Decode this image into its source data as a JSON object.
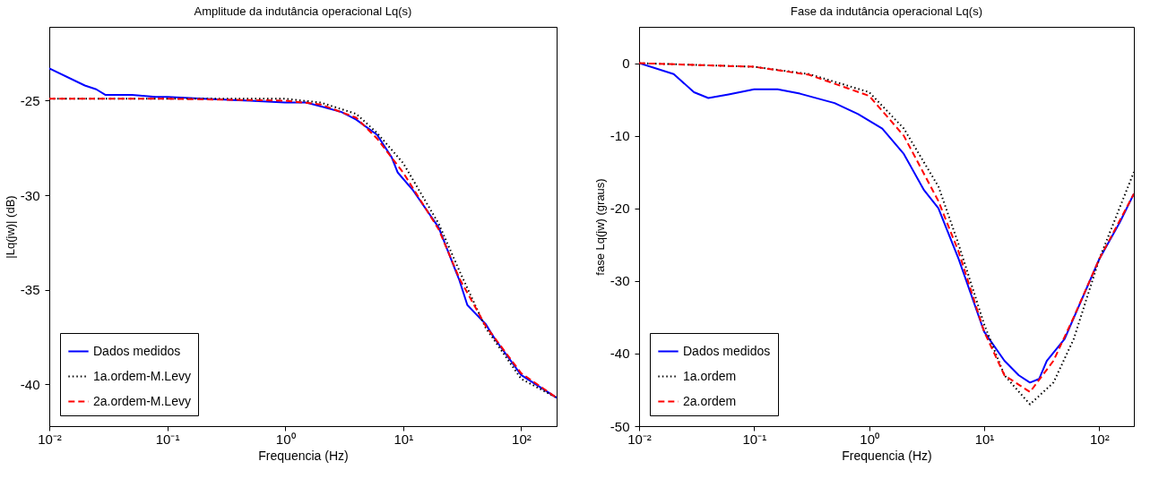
{
  "chart_data": [
    {
      "type": "line",
      "title": "Amplitude da indutância operacional Lq(s)",
      "xlabel": "Frequencia (Hz)",
      "ylabel": "|Lq(jw)| (dB)",
      "log": "x",
      "grid": false,
      "legend": "bottom left",
      "xlim": [
        0.01,
        200
      ],
      "ylim": [
        -42.2,
        -21.1
      ],
      "xticks": [
        {
          "value": 0.01,
          "label": "10⁻²"
        },
        {
          "value": 0.1,
          "label": "10⁻¹"
        },
        {
          "value": 1,
          "label": "10⁰"
        },
        {
          "value": 10,
          "label": "10¹"
        },
        {
          "value": 100,
          "label": "10²"
        }
      ],
      "yticks": [
        -40,
        -35,
        -30,
        -25
      ],
      "series": [
        {
          "name": "Dados medidos",
          "color": "#0000ff",
          "line_style": "solid",
          "x": [
            0.01,
            0.02,
            0.025,
            0.03,
            0.05,
            0.08,
            0.1,
            0.2,
            0.5,
            1,
            1.5,
            2,
            3,
            4,
            6,
            8,
            9,
            12,
            20,
            30,
            35,
            50,
            60,
            100,
            200
          ],
          "values": [
            -23.3,
            -24.2,
            -24.4,
            -24.7,
            -24.7,
            -24.8,
            -24.8,
            -24.9,
            -25.0,
            -25.1,
            -25.1,
            -25.3,
            -25.6,
            -26.0,
            -26.8,
            -28.0,
            -28.8,
            -29.7,
            -31.7,
            -34.5,
            -35.8,
            -36.8,
            -37.6,
            -39.5,
            -40.7
          ]
        },
        {
          "name": "1a.ordem-M.Levy",
          "color": "#000000",
          "line_style": "dotted",
          "x": [
            0.01,
            0.1,
            1,
            2,
            4,
            6,
            10,
            20,
            30,
            50,
            100,
            200
          ],
          "values": [
            -24.9,
            -24.9,
            -24.9,
            -25.1,
            -25.7,
            -26.7,
            -28.3,
            -31.5,
            -34.0,
            -37.0,
            -39.7,
            -40.7
          ]
        },
        {
          "name": "2a.ordem-M.Levy",
          "color": "#ff0000",
          "line_style": "dashed",
          "x": [
            0.01,
            0.1,
            1,
            2,
            4,
            6,
            10,
            20,
            30,
            50,
            100,
            200
          ],
          "values": [
            -24.9,
            -24.9,
            -25.0,
            -25.2,
            -25.9,
            -27.0,
            -28.8,
            -31.8,
            -34.4,
            -36.9,
            -39.4,
            -40.7
          ]
        }
      ]
    },
    {
      "type": "line",
      "title": "Fase da indutância operacional Lq(s)",
      "xlabel": "Frequencia (Hz)",
      "ylabel": "fase Lq(jw) (graus)",
      "log": "x",
      "grid": false,
      "legend": "bottom left",
      "xlim": [
        0.01,
        200
      ],
      "ylim": [
        -50,
        5
      ],
      "xticks": [
        {
          "value": 0.01,
          "label": "10⁻²"
        },
        {
          "value": 0.1,
          "label": "10⁻¹"
        },
        {
          "value": 1,
          "label": "10⁰"
        },
        {
          "value": 10,
          "label": "10¹"
        },
        {
          "value": 100,
          "label": "10²"
        }
      ],
      "yticks": [
        -50,
        -40,
        -30,
        -20,
        -10,
        0
      ],
      "series": [
        {
          "name": "Dados medidos",
          "color": "#0000ff",
          "line_style": "solid",
          "x": [
            0.01,
            0.02,
            0.03,
            0.04,
            0.06,
            0.1,
            0.16,
            0.25,
            0.5,
            0.8,
            1.3,
            2,
            3,
            4,
            6,
            10,
            15,
            20,
            25,
            30,
            35,
            50,
            100,
            150,
            200
          ],
          "values": [
            0,
            -1.5,
            -4,
            -4.8,
            -4.3,
            -3.6,
            -3.6,
            -4.2,
            -5.5,
            -7.0,
            -9,
            -12.5,
            -17.5,
            -20,
            -27,
            -37,
            -41,
            -43,
            -44,
            -43.5,
            -41,
            -38,
            -27,
            -22,
            -18
          ]
        },
        {
          "name": "1a.ordem",
          "color": "#000000",
          "line_style": "dotted",
          "x": [
            0.01,
            0.1,
            0.3,
            1,
            2,
            4,
            6,
            10,
            15,
            25,
            40,
            60,
            100,
            200
          ],
          "values": [
            0,
            -0.5,
            -1.5,
            -4,
            -9,
            -17,
            -25,
            -36,
            -43,
            -47,
            -44,
            -38,
            -27,
            -15
          ]
        },
        {
          "name": "2a.ordem",
          "color": "#ff0000",
          "line_style": "dashed",
          "x": [
            0.01,
            0.1,
            0.3,
            1,
            2,
            4,
            6,
            10,
            15,
            25,
            40,
            60,
            100,
            200
          ],
          "values": [
            0,
            -0.5,
            -1.6,
            -4.5,
            -10,
            -19,
            -26,
            -37,
            -43,
            -45.3,
            -41,
            -35,
            -27,
            -18
          ]
        }
      ]
    }
  ]
}
